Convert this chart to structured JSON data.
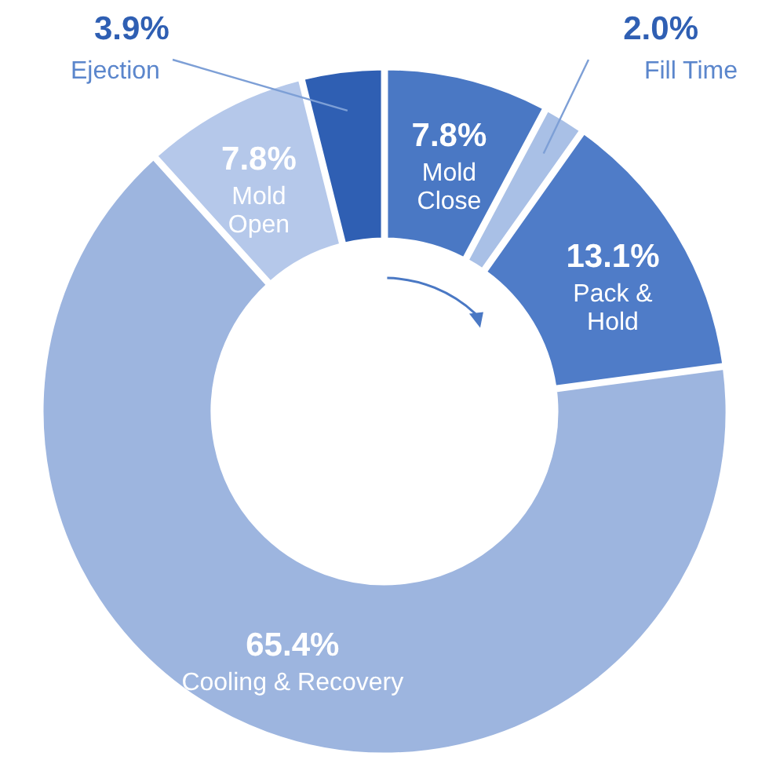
{
  "chart_data": {
    "type": "donut",
    "categories": [
      "Mold Close",
      "Fill Time",
      "Pack & Hold",
      "Cooling & Recovery",
      "Mold Open",
      "Ejection"
    ],
    "values": [
      7.8,
      2.0,
      13.1,
      65.4,
      7.8,
      3.9
    ],
    "value_labels": [
      "7.8%",
      "2.0%",
      "13.1%",
      "65.4%",
      "7.8%",
      "3.9%"
    ],
    "colors": [
      "#4a78c4",
      "#a9c0e6",
      "#4f7cc8",
      "#9db5df",
      "#b5c8ea",
      "#2f5fb3"
    ]
  }
}
